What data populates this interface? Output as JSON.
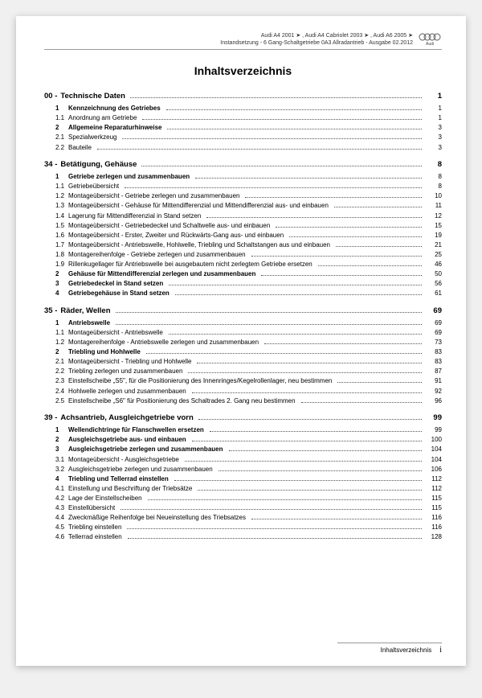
{
  "header": {
    "line1": "Audi A4 2001 ➤ , Audi A4 Cabriolet 2003 ➤ , Audi A6 2005 ➤",
    "line2": "Instandsetzung - 6 Gang-Schaltgetriebe 0A3 Allradantrieb - Ausgabe 02.2012",
    "brand": "Audi"
  },
  "title": "Inhaltsverzeichnis",
  "sections": [
    {
      "num": "00 -",
      "label": "Technische Daten",
      "page": "1",
      "entries": [
        {
          "num": "1",
          "label": "Kennzeichnung des Getriebes",
          "page": "1",
          "bold": true
        },
        {
          "num": "1.1",
          "label": "Anordnung am Getriebe",
          "page": "1"
        },
        {
          "num": "2",
          "label": "Allgemeine Reparaturhinweise",
          "page": "3",
          "bold": true
        },
        {
          "num": "2.1",
          "label": "Spezialwerkzeug",
          "page": "3"
        },
        {
          "num": "2.2",
          "label": "Bauteile",
          "page": "3"
        }
      ]
    },
    {
      "num": "34 -",
      "label": "Betätigung, Gehäuse",
      "page": "8",
      "entries": [
        {
          "num": "1",
          "label": "Getriebe zerlegen und zusammenbauen",
          "page": "8",
          "bold": true
        },
        {
          "num": "1.1",
          "label": "Getriebeübersicht",
          "page": "8"
        },
        {
          "num": "1.2",
          "label": "Montageübersicht - Getriebe zerlegen und zusammenbauen",
          "page": "10"
        },
        {
          "num": "1.3",
          "label": "Montageübersicht - Gehäuse für Mittendifferenzial und Mittendifferenzial aus- und einbauen",
          "page": "11"
        },
        {
          "num": "1.4",
          "label": "Lagerung für Mittendifferenzial in Stand setzen",
          "page": "12"
        },
        {
          "num": "1.5",
          "label": "Montageübersicht - Getriebedeckel und Schaltwelle aus- und einbauen",
          "page": "15"
        },
        {
          "num": "1.6",
          "label": "Montageübersicht - Erster, Zweiter und Rückwärts-Gang aus- und einbauen",
          "page": "19"
        },
        {
          "num": "1.7",
          "label": "Montageübersicht - Antriebswelle, Hohlwelle, Triebling und Schaltstangen aus und einbauen",
          "page": "21"
        },
        {
          "num": "1.8",
          "label": "Montagereihenfolge - Getriebe zerlegen und zusammenbauen",
          "page": "25"
        },
        {
          "num": "1.9",
          "label": "Rillenkugellager für Antriebswelle bei ausgebautem nicht zerlegtem Getriebe ersetzen",
          "page": "46"
        },
        {
          "num": "2",
          "label": "Gehäuse für Mittendifferenzial zerlegen und zusammenbauen",
          "page": "50",
          "bold": true
        },
        {
          "num": "3",
          "label": "Getriebedeckel in Stand setzen",
          "page": "56",
          "bold": true
        },
        {
          "num": "4",
          "label": "Getriebegehäuse in Stand setzen",
          "page": "61",
          "bold": true
        }
      ]
    },
    {
      "num": "35 -",
      "label": "Räder, Wellen",
      "page": "69",
      "entries": [
        {
          "num": "1",
          "label": "Antriebswelle",
          "page": "69",
          "bold": true
        },
        {
          "num": "1.1",
          "label": "Montageübersicht - Antriebswelle",
          "page": "69"
        },
        {
          "num": "1.2",
          "label": "Montagereihenfolge - Antriebswelle zerlegen und zusammenbauen",
          "page": "73"
        },
        {
          "num": "2",
          "label": "Triebling und Hohlwelle",
          "page": "83",
          "bold": true
        },
        {
          "num": "2.1",
          "label": "Montageübersicht - Triebling und Hohlwelle",
          "page": "83"
        },
        {
          "num": "2.2",
          "label": "Triebling zerlegen und zusammenbauen",
          "page": "87"
        },
        {
          "num": "2.3",
          "label": "Einstellscheibe „S5\", für die Positionierung des Innenringes/Kegelrollenlager, neu bestimmen",
          "page": "91"
        },
        {
          "num": "2.4",
          "label": "Hohlwelle zerlegen und zusammenbauen",
          "page": "92"
        },
        {
          "num": "2.5",
          "label": "Einstellscheibe „S6\" für Positionierung des Schaltrades 2. Gang neu bestimmen",
          "page": "96"
        }
      ]
    },
    {
      "num": "39 -",
      "label": "Achsantrieb, Ausgleichgetriebe vorn",
      "page": "99",
      "entries": [
        {
          "num": "1",
          "label": "Wellendichtringe für Flanschwellen ersetzen",
          "page": "99",
          "bold": true
        },
        {
          "num": "2",
          "label": "Ausgleichsgetriebe aus- und einbauen",
          "page": "100",
          "bold": true
        },
        {
          "num": "3",
          "label": "Ausgleichsgetriebe zerlegen und zusammenbauen",
          "page": "104",
          "bold": true
        },
        {
          "num": "3.1",
          "label": "Montageübersicht - Ausgleichsgetriebe",
          "page": "104"
        },
        {
          "num": "3.2",
          "label": "Ausgleichsgetriebe zerlegen und zusammenbauen",
          "page": "106"
        },
        {
          "num": "4",
          "label": "Triebling und Tellerrad einstellen",
          "page": "112",
          "bold": true
        },
        {
          "num": "4.1",
          "label": "Einstellung und Beschriftung der Triebsätze",
          "page": "112"
        },
        {
          "num": "4.2",
          "label": "Lage der Einstellscheiben",
          "page": "115"
        },
        {
          "num": "4.3",
          "label": "Einstellübersicht",
          "page": "115"
        },
        {
          "num": "4.4",
          "label": "Zweckmäßige Reihenfolge bei Neueinstellung des Triebsatzes",
          "page": "116"
        },
        {
          "num": "4.5",
          "label": "Triebling einstellen",
          "page": "116"
        },
        {
          "num": "4.6",
          "label": "Tellerrad einstellen",
          "page": "128"
        }
      ]
    }
  ],
  "footer": {
    "label": "Inhaltsverzeichnis",
    "page": "i"
  }
}
